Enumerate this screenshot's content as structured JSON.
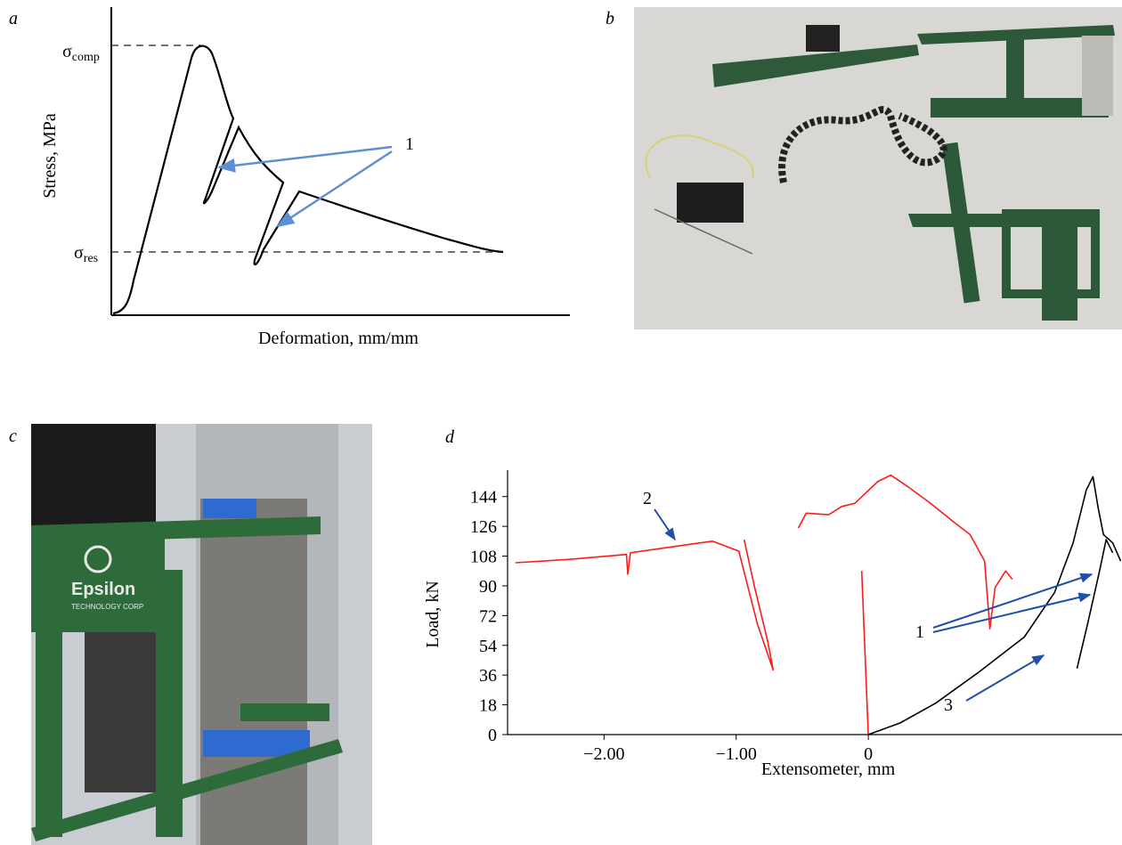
{
  "panels": {
    "a": {
      "label": "a",
      "y_label": "Stress, MPa",
      "x_label": "Deformation, mm/mm",
      "levels": [
        {
          "symbol": "σ",
          "subscript": "comp"
        },
        {
          "symbol": "σ",
          "subscript": "res"
        }
      ],
      "annotation": "1"
    },
    "b": {
      "label": "b"
    },
    "c": {
      "label": "c",
      "photo_texts": [
        "Epsilon",
        "TECHNOLOGY CORP"
      ]
    },
    "d": {
      "label": "d"
    }
  },
  "chart_data": {
    "type": "line",
    "y_label": "Load, kN",
    "x_label": "Extensometer, mm",
    "xlim": [
      -2.73,
      1.92
    ],
    "ylim": [
      0,
      160
    ],
    "xticks": [
      {
        "value": -2,
        "label": "−2.00"
      },
      {
        "value": -1,
        "label": "−1.00"
      },
      0
    ],
    "yticks": [
      0,
      18,
      36,
      54,
      72,
      90,
      108,
      126,
      144
    ],
    "annotations": [
      "2",
      "1",
      "3"
    ],
    "series": [
      {
        "color": "#ff1a1a",
        "x": [
          -2.67,
          -2.26,
          -1.83,
          -1.82,
          -1.8,
          -1.45,
          -1.18,
          -0.98,
          -0.84,
          -0.72,
          -0.76,
          -0.86,
          -0.94,
          null,
          -0.53,
          -0.47,
          -0.3,
          -0.2,
          -0.1,
          0.07,
          0.17,
          0.3,
          0.47,
          0.64,
          0.77,
          0.88,
          0.92,
          0.96,
          1.04,
          1.09,
          null,
          -0.05,
          0
        ],
        "values": [
          104,
          106,
          109,
          97,
          110,
          114,
          117,
          111,
          67,
          39,
          56,
          89,
          118,
          null,
          125,
          134,
          133,
          138,
          140,
          153,
          157,
          150,
          140,
          129,
          121,
          105,
          64,
          89,
          99,
          94,
          null,
          99,
          0
        ]
      },
      {
        "color": "#000000",
        "x": [
          0,
          0.24,
          0.51,
          0.84,
          1.18,
          1.41,
          1.55,
          1.65,
          1.7,
          1.74,
          1.78,
          1.85,
          1.91,
          null,
          1.58,
          1.66,
          1.75,
          1.8,
          1.85
        ],
        "values": [
          0,
          7,
          19,
          38,
          59,
          86,
          116,
          148,
          156,
          137,
          121,
          116,
          105,
          null,
          40,
          67,
          99,
          118,
          110
        ]
      }
    ]
  }
}
